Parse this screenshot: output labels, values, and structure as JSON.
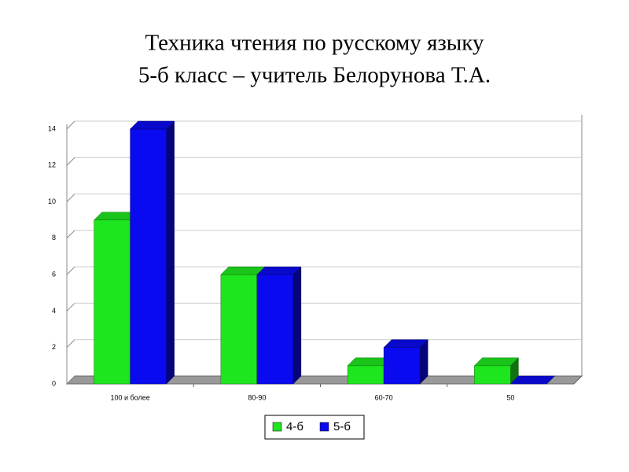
{
  "chart_data": {
    "type": "bar3d",
    "title": "Техника чтения по русскому языку",
    "subtitle": "5-б класс – учитель Белорунова Т.А.",
    "categories": [
      "100 и более",
      "80-90",
      "60-70",
      "50"
    ],
    "series": [
      {
        "name": "4-б",
        "color": "#1ee61e",
        "values": [
          9,
          6,
          1,
          1
        ]
      },
      {
        "name": "5-б",
        "color": "#0a0af0",
        "values": [
          14,
          6,
          2,
          0
        ]
      }
    ],
    "ylim": [
      0,
      14
    ],
    "yticks": [
      0,
      2,
      4,
      6,
      8,
      10,
      12,
      14
    ],
    "grid": true,
    "legend": "bottom"
  }
}
